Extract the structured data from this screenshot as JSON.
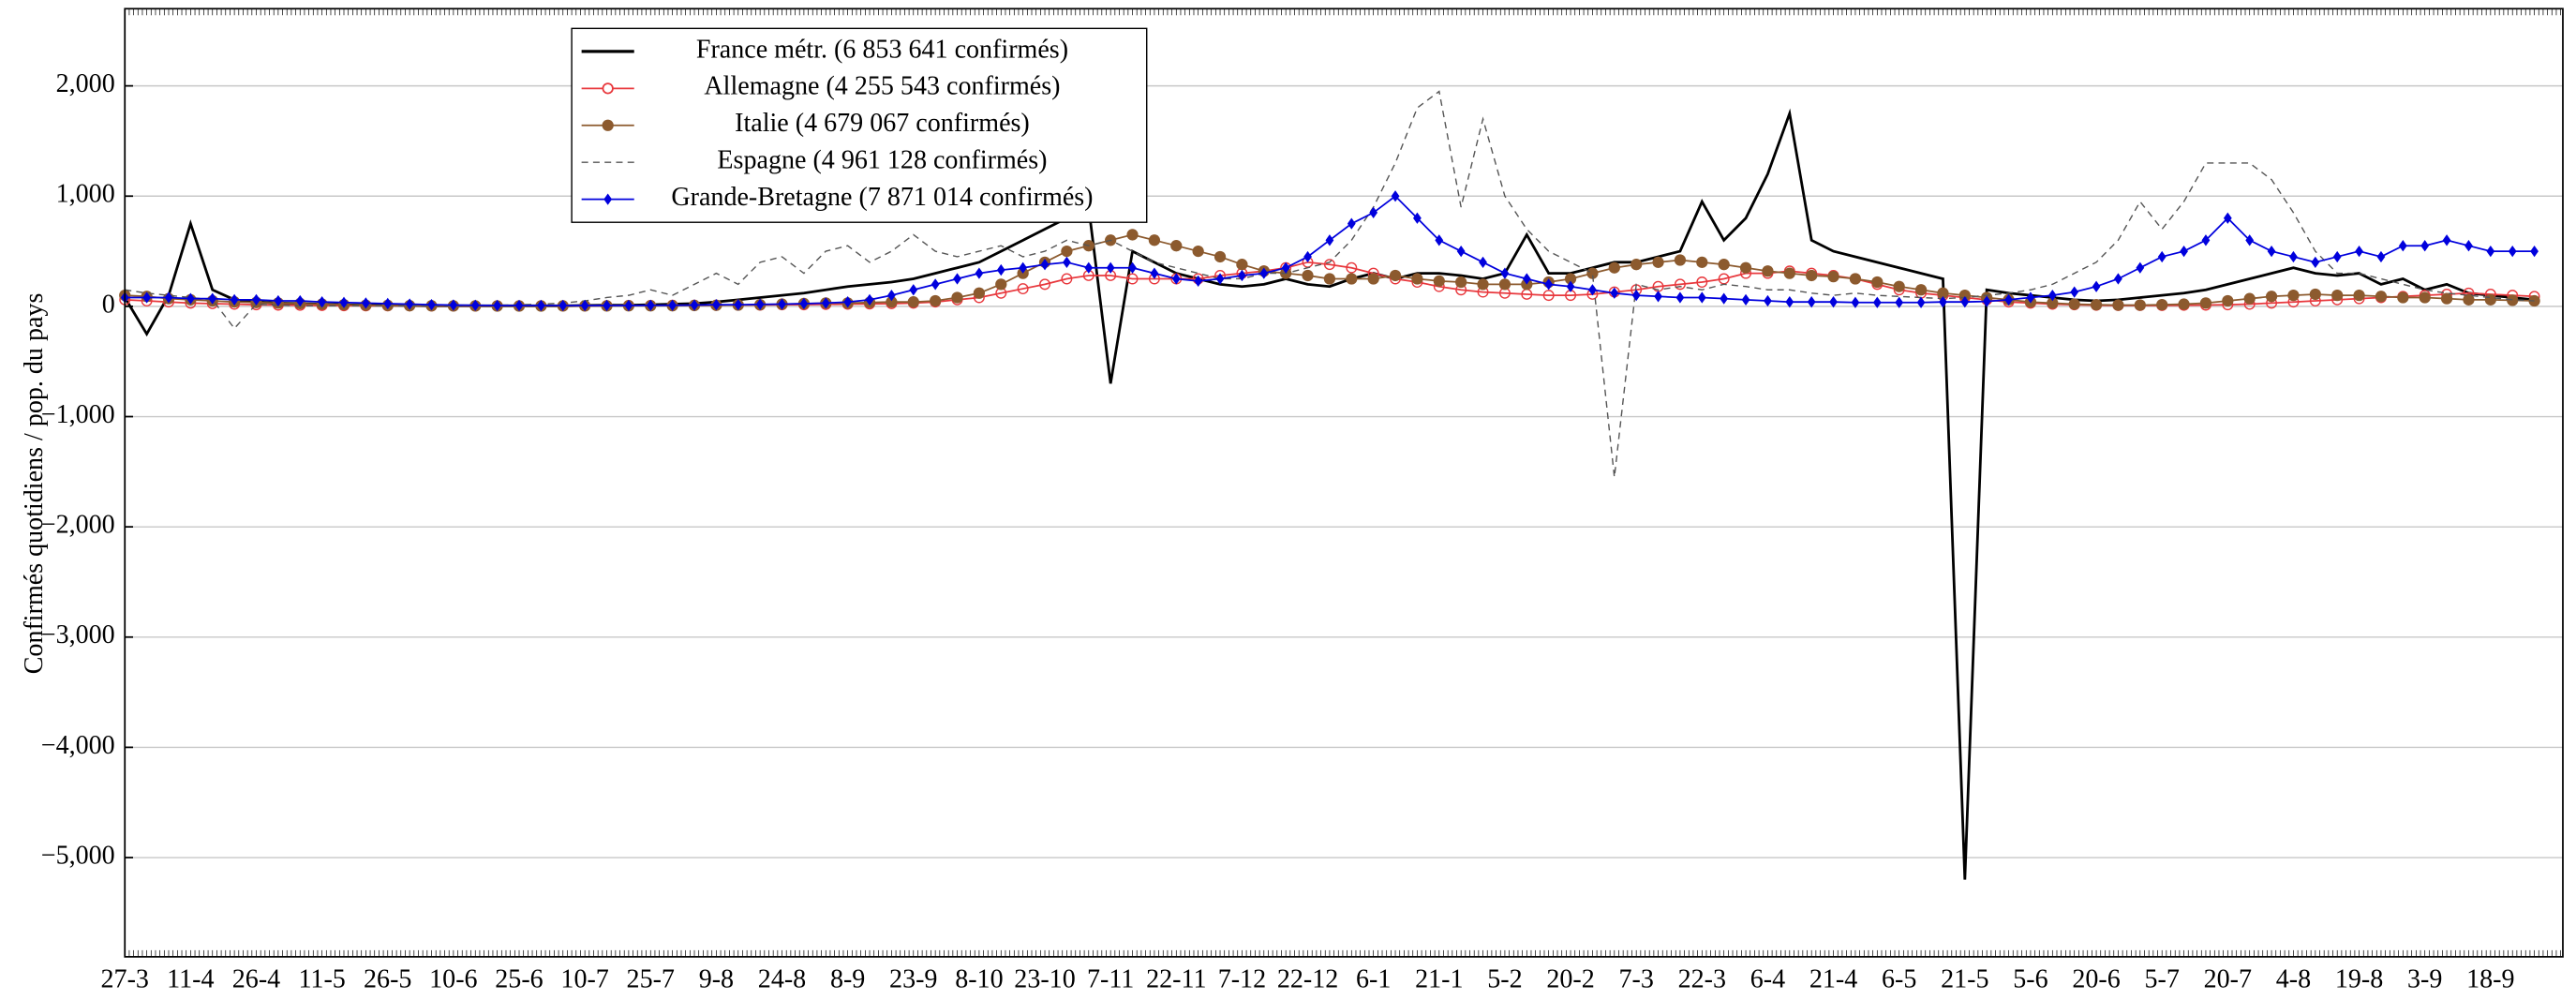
{
  "chart_data": {
    "type": "line",
    "ylabel": "Confirmés quotidiens / pop. du pays",
    "categories": [
      "27-3",
      null,
      null,
      "11-4",
      null,
      null,
      "26-4",
      null,
      null,
      "11-5",
      null,
      null,
      "26-5",
      null,
      null,
      "10-6",
      null,
      null,
      "25-6",
      null,
      null,
      "10-7",
      null,
      null,
      "25-7",
      null,
      null,
      "9-8",
      null,
      null,
      "24-8",
      null,
      null,
      "8-9",
      null,
      null,
      "23-9",
      null,
      null,
      "8-10",
      null,
      null,
      "23-10",
      null,
      null,
      "7-11",
      null,
      null,
      "22-11",
      null,
      null,
      "7-12",
      null,
      null,
      "22-12",
      null,
      null,
      "6-1",
      null,
      null,
      "21-1",
      null,
      null,
      "5-2",
      null,
      null,
      "20-2",
      null,
      null,
      "7-3",
      null,
      null,
      "22-3",
      null,
      null,
      "6-4",
      null,
      null,
      "21-4",
      null,
      null,
      "6-5",
      null,
      null,
      "21-5",
      null,
      null,
      "5-6",
      null,
      null,
      "20-6",
      null,
      null,
      "5-7",
      null,
      null,
      "20-7",
      null,
      null,
      "4-8",
      null,
      null,
      "19-8",
      null,
      null,
      "3-9",
      null,
      null,
      "18-9",
      null,
      null
    ],
    "series": [
      {
        "name": "France métr. (6 853 641 confirmés)",
        "color": "#000000",
        "line_style": "solid",
        "marker": "none",
        "values": [
          80,
          -250,
          100,
          750,
          150,
          60,
          40,
          30,
          25,
          20,
          15,
          10,
          10,
          8,
          5,
          5,
          5,
          5,
          5,
          5,
          5,
          8,
          10,
          10,
          15,
          20,
          25,
          40,
          60,
          80,
          100,
          120,
          150,
          180,
          200,
          220,
          250,
          300,
          350,
          400,
          500,
          600,
          700,
          800,
          900,
          -700,
          500,
          400,
          300,
          250,
          200,
          180,
          200,
          250,
          200,
          180,
          250,
          300,
          250,
          300,
          300,
          280,
          250,
          300,
          650,
          300,
          300,
          350,
          400,
          400,
          450,
          500,
          950,
          600,
          800,
          1200,
          1750,
          600,
          500,
          450,
          400,
          350,
          300,
          250,
          -5200,
          150,
          120,
          100,
          80,
          60,
          50,
          60,
          80,
          100,
          120,
          150,
          200,
          250,
          300,
          350,
          300,
          280,
          300,
          200,
          250,
          150,
          200,
          120,
          100,
          80,
          60
        ]
      },
      {
        "name": "Allemagne (4 255 543 confirmés)",
        "color": "#e8383d",
        "line_style": "solid",
        "marker": "circle-open",
        "values": [
          60,
          50,
          40,
          30,
          25,
          20,
          15,
          12,
          10,
          8,
          6,
          5,
          5,
          5,
          4,
          4,
          4,
          5,
          5,
          5,
          5,
          5,
          6,
          8,
          8,
          10,
          10,
          10,
          12,
          12,
          15,
          15,
          18,
          20,
          22,
          25,
          30,
          40,
          60,
          80,
          120,
          160,
          200,
          250,
          280,
          280,
          250,
          250,
          250,
          250,
          280,
          300,
          320,
          350,
          400,
          380,
          350,
          300,
          250,
          220,
          180,
          150,
          130,
          120,
          110,
          100,
          100,
          110,
          130,
          150,
          180,
          200,
          220,
          250,
          300,
          300,
          320,
          300,
          280,
          250,
          200,
          150,
          120,
          100,
          80,
          60,
          40,
          30,
          20,
          15,
          10,
          8,
          8,
          8,
          10,
          12,
          15,
          20,
          30,
          40,
          50,
          60,
          70,
          80,
          90,
          100,
          110,
          120,
          110,
          100,
          90
        ]
      },
      {
        "name": "Italie (4 679 067 confirmés)",
        "color": "#8c5a2e",
        "line_style": "solid",
        "marker": "circle",
        "values": [
          100,
          90,
          70,
          60,
          50,
          40,
          35,
          30,
          25,
          20,
          15,
          10,
          8,
          6,
          5,
          4,
          4,
          3,
          3,
          3,
          4,
          4,
          4,
          5,
          5,
          6,
          8,
          10,
          12,
          15,
          20,
          25,
          30,
          30,
          35,
          40,
          40,
          50,
          80,
          120,
          200,
          300,
          400,
          500,
          550,
          600,
          650,
          600,
          550,
          500,
          450,
          380,
          320,
          300,
          280,
          250,
          250,
          250,
          280,
          250,
          230,
          220,
          200,
          200,
          200,
          220,
          250,
          300,
          350,
          380,
          400,
          420,
          400,
          380,
          350,
          320,
          300,
          280,
          270,
          250,
          220,
          180,
          150,
          120,
          100,
          80,
          60,
          40,
          30,
          20,
          15,
          12,
          12,
          15,
          20,
          30,
          50,
          70,
          90,
          100,
          110,
          100,
          100,
          90,
          80,
          80,
          70,
          60,
          60,
          55,
          50
        ]
      },
      {
        "name": "Espagne (4 961 128 confirmés)",
        "color": "#555555",
        "line_style": "dashed",
        "marker": "none",
        "values": [
          150,
          120,
          100,
          80,
          60,
          -200,
          20,
          10,
          5,
          5,
          5,
          5,
          5,
          5,
          5,
          5,
          8,
          10,
          15,
          20,
          30,
          50,
          80,
          100,
          150,
          100,
          200,
          300,
          200,
          400,
          450,
          300,
          500,
          550,
          400,
          500,
          650,
          500,
          450,
          500,
          550,
          450,
          500,
          600,
          550,
          600,
          500,
          400,
          350,
          300,
          250,
          250,
          300,
          300,
          350,
          400,
          600,
          900,
          1300,
          1800,
          1950,
          900,
          1700,
          1000,
          700,
          500,
          400,
          300,
          -1550,
          200,
          150,
          180,
          150,
          200,
          180,
          150,
          150,
          120,
          100,
          120,
          100,
          90,
          80,
          70,
          80,
          100,
          120,
          150,
          200,
          300,
          400,
          600,
          950,
          700,
          950,
          1300,
          1300,
          1300,
          1150,
          850,
          500,
          300,
          300,
          250,
          200,
          150,
          120,
          100,
          80,
          60,
          50
        ]
      },
      {
        "name": "Grande-Bretagne (7 871 014 confirmés)",
        "color": "#0000dd",
        "line_style": "solid",
        "marker": "diamond",
        "values": [
          80,
          80,
          80,
          70,
          70,
          60,
          60,
          50,
          50,
          40,
          35,
          30,
          25,
          20,
          15,
          12,
          10,
          8,
          8,
          8,
          8,
          8,
          8,
          8,
          10,
          10,
          12,
          15,
          15,
          18,
          20,
          25,
          30,
          40,
          60,
          100,
          150,
          200,
          250,
          300,
          330,
          350,
          380,
          400,
          350,
          350,
          350,
          300,
          250,
          230,
          250,
          280,
          300,
          350,
          450,
          600,
          750,
          850,
          1000,
          800,
          600,
          500,
          400,
          300,
          250,
          200,
          180,
          150,
          120,
          100,
          90,
          80,
          80,
          70,
          60,
          50,
          40,
          40,
          40,
          35,
          35,
          35,
          35,
          40,
          40,
          45,
          60,
          80,
          100,
          130,
          180,
          250,
          350,
          450,
          500,
          600,
          800,
          600,
          500,
          450,
          400,
          450,
          500,
          450,
          550,
          550,
          600,
          550,
          500,
          500,
          500
        ]
      }
    ],
    "ylim": [
      -5900,
      2700
    ],
    "yticks": [
      {
        "value": -5000,
        "label": "−5,000"
      },
      {
        "value": -4000,
        "label": "−4,000"
      },
      {
        "value": -3000,
        "label": "−3,000"
      },
      {
        "value": -2000,
        "label": "−2,000"
      },
      {
        "value": -1000,
        "label": "−1,000"
      },
      0,
      {
        "value": 1000,
        "label": "1,000"
      },
      {
        "value": 2000,
        "label": "2,000"
      }
    ],
    "grid": true,
    "legend": "upper left"
  }
}
